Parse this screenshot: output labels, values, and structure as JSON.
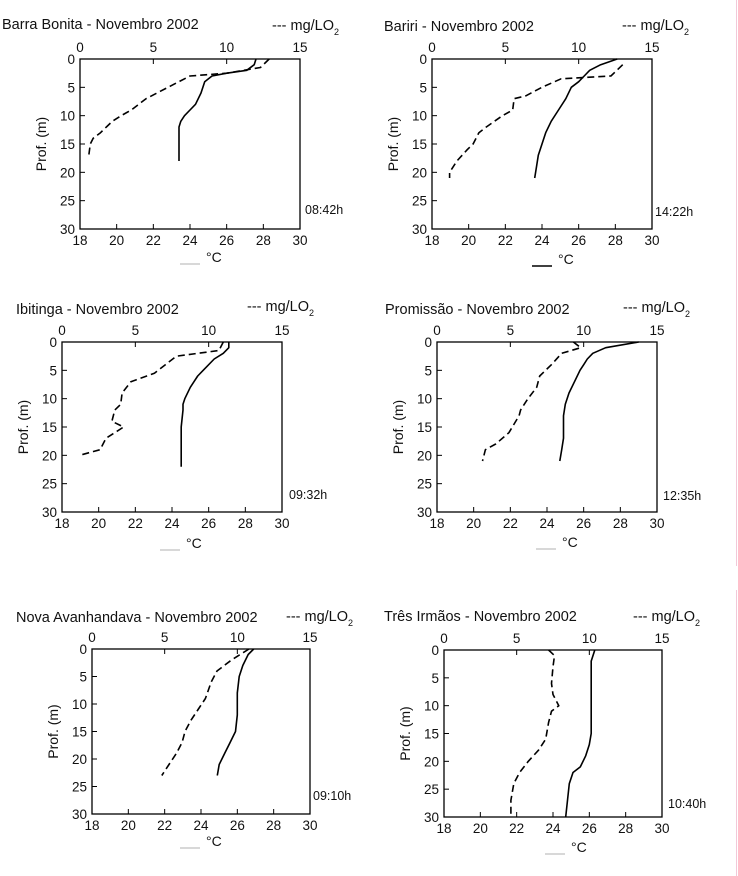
{
  "figure": {
    "type": "depth-profile-grid",
    "colors": {
      "temperature": "#000000",
      "oxygen": "#000000",
      "text": "#111111",
      "edge_accent": "#f2c8d8"
    }
  },
  "chart_data": [
    {
      "type": "line",
      "title": "Barra Bonita - Novembro 2002",
      "legend_o2": "--- mg/LO",
      "legend_o2_sub": "2",
      "legend_temp": "°C",
      "ylabel": "Prof. (m)",
      "time": "08:42h",
      "top_axis": {
        "lim": [
          0,
          15
        ],
        "ticks": [
          "0",
          "5",
          "10",
          "15"
        ]
      },
      "bottom_axis": {
        "lim": [
          18,
          30
        ],
        "ticks": [
          "18",
          "20",
          "22",
          "24",
          "26",
          "28",
          "30"
        ]
      },
      "ylim": [
        0,
        30
      ],
      "yticks": [
        "0",
        "5",
        "10",
        "15",
        "20",
        "25",
        "30"
      ],
      "series": [
        {
          "axis": "bottom",
          "style": "solid",
          "x": [
            27.6,
            27.5,
            27.1,
            26.0,
            25.2,
            24.8,
            24.6,
            24.3,
            24.0,
            23.7,
            23.5,
            23.4,
            23.4,
            23.4
          ],
          "y": [
            0,
            1,
            2,
            2.5,
            3,
            4,
            6,
            8,
            9,
            10,
            11,
            12,
            15,
            18
          ]
        },
        {
          "axis": "top",
          "style": "dashed",
          "x": [
            12.9,
            12.3,
            10.0,
            7.5,
            6.0,
            4.5,
            3.5,
            2.8,
            2.2,
            1.4,
            0.9,
            0.7,
            0.6
          ],
          "y": [
            0,
            1.5,
            2.5,
            3,
            5,
            7,
            9,
            10,
            11,
            13,
            14,
            15,
            17
          ]
        }
      ]
    },
    {
      "type": "line",
      "title": "Bariri - Novembro 2002",
      "legend_o2": "--- mg/LO",
      "legend_o2_sub": "2",
      "legend_temp": "°C",
      "ylabel": "Prof. (m)",
      "time": "14:22h",
      "top_axis": {
        "lim": [
          0,
          15
        ],
        "ticks": [
          "0",
          "5",
          "10",
          "15"
        ]
      },
      "bottom_axis": {
        "lim": [
          18,
          30
        ],
        "ticks": [
          "18",
          "20",
          "22",
          "24",
          "26",
          "28",
          "30"
        ]
      },
      "ylim": [
        0,
        30
      ],
      "yticks": [
        "0",
        "5",
        "10",
        "15",
        "20",
        "25",
        "30"
      ],
      "series": [
        {
          "axis": "bottom",
          "style": "solid",
          "x": [
            28.1,
            27.2,
            26.6,
            26.3,
            26.0,
            25.6,
            25.3,
            24.9,
            24.5,
            24.2,
            24.0,
            23.8,
            23.7,
            23.6
          ],
          "y": [
            0,
            1,
            2,
            3,
            4,
            5,
            7,
            9,
            11,
            13,
            15,
            17,
            19,
            21
          ]
        },
        {
          "axis": "top",
          "style": "dashed",
          "x": [
            13.0,
            12.2,
            8.8,
            7.5,
            6.4,
            5.6,
            5.5,
            4.8,
            3.7,
            3.2,
            2.8,
            2.4,
            1.7,
            1.2,
            1.2
          ],
          "y": [
            1,
            3,
            3.5,
            5,
            6.5,
            7,
            9,
            10,
            12,
            13,
            15,
            16,
            18,
            20,
            21
          ]
        }
      ]
    },
    {
      "type": "line",
      "title": "Ibitinga - Novembro 2002",
      "legend_o2": "--- mg/LO",
      "legend_o2_sub": "2",
      "legend_temp": "°C",
      "ylabel": "Prof. (m)",
      "time": "09:32h",
      "top_axis": {
        "lim": [
          0,
          15
        ],
        "ticks": [
          "0",
          "5",
          "10",
          "15"
        ]
      },
      "bottom_axis": {
        "lim": [
          18,
          30
        ],
        "ticks": [
          "18",
          "20",
          "22",
          "24",
          "26",
          "28",
          "30"
        ]
      },
      "ylim": [
        0,
        30
      ],
      "yticks": [
        "0",
        "5",
        "10",
        "15",
        "20",
        "25",
        "30"
      ],
      "series": [
        {
          "axis": "bottom",
          "style": "solid",
          "x": [
            27.1,
            27.1,
            26.8,
            26.3,
            25.7,
            25.4,
            25.0,
            24.7,
            24.6,
            24.6,
            24.5,
            24.5,
            24.5,
            24.5
          ],
          "y": [
            0,
            1,
            2,
            3,
            5,
            6,
            8,
            10,
            11,
            12,
            15,
            18,
            20,
            22
          ]
        },
        {
          "axis": "top",
          "style": "dashed",
          "x": [
            11.0,
            10.7,
            7.8,
            6.3,
            4.7,
            4.1,
            4.0,
            3.6,
            3.4,
            4.2,
            3.0,
            2.6,
            1.2
          ],
          "y": [
            0,
            1.5,
            2.5,
            5.5,
            7,
            9,
            11,
            12,
            14,
            15,
            17,
            19,
            20
          ]
        }
      ]
    },
    {
      "type": "line",
      "title": "Promissão - Novembro 2002",
      "legend_o2": "--- mg/LO",
      "legend_o2_sub": "2",
      "legend_temp": "°C",
      "ylabel": "Prof. (m)",
      "time": "12:35h",
      "top_axis": {
        "lim": [
          0,
          15
        ],
        "ticks": [
          "0",
          "5",
          "10",
          "15"
        ]
      },
      "bottom_axis": {
        "lim": [
          18,
          30
        ],
        "ticks": [
          "18",
          "20",
          "22",
          "24",
          "26",
          "28",
          "30"
        ]
      },
      "ylim": [
        0,
        30
      ],
      "yticks": [
        "0",
        "5",
        "10",
        "15",
        "20",
        "25",
        "30"
      ],
      "series": [
        {
          "axis": "bottom",
          "style": "solid",
          "x": [
            29.0,
            27.2,
            26.5,
            26.2,
            26.0,
            25.8,
            25.5,
            25.2,
            25.0,
            24.9,
            24.9,
            24.9,
            24.8,
            24.7
          ],
          "y": [
            0,
            1,
            2,
            3,
            4,
            5,
            7,
            9,
            11,
            13,
            15,
            17,
            19,
            21
          ]
        },
        {
          "axis": "top",
          "style": "dashed",
          "x": [
            9.3,
            9.8,
            8.5,
            7.8,
            7.0,
            6.8,
            6.2,
            5.7,
            5.6,
            4.9,
            4.0,
            3.3,
            3.1
          ],
          "y": [
            0,
            1,
            2,
            4,
            6,
            8,
            10,
            12,
            13,
            16,
            18,
            19,
            21
          ]
        }
      ]
    },
    {
      "type": "line",
      "title": "Nova Avanhandava - Novembro 2002",
      "legend_o2": "--- mg/LO",
      "legend_o2_sub": "2",
      "legend_temp": "°C",
      "ylabel": "Prof. (m)",
      "time": "09:10h",
      "top_axis": {
        "lim": [
          0,
          15
        ],
        "ticks": [
          "0",
          "5",
          "10",
          "15"
        ]
      },
      "bottom_axis": {
        "lim": [
          18,
          30
        ],
        "ticks": [
          "18",
          "20",
          "22",
          "24",
          "26",
          "28",
          "30"
        ]
      },
      "ylim": [
        0,
        30
      ],
      "yticks": [
        "0",
        "5",
        "10",
        "15",
        "20",
        "25",
        "30"
      ],
      "series": [
        {
          "axis": "bottom",
          "style": "solid",
          "x": [
            26.9,
            26.6,
            26.3,
            26.1,
            26.0,
            26.0,
            26.0,
            25.9,
            25.6,
            25.3,
            25.0,
            24.9
          ],
          "y": [
            0,
            1,
            3,
            5,
            8,
            10,
            12,
            15,
            17,
            19,
            21,
            23
          ]
        },
        {
          "axis": "top",
          "style": "dashed",
          "x": [
            10.8,
            9.6,
            8.6,
            8.2,
            7.8,
            7.3,
            6.8,
            6.4,
            6.2,
            5.8,
            5.3,
            4.8
          ],
          "y": [
            0,
            2,
            4,
            6,
            9,
            11,
            13,
            15,
            17,
            19,
            21,
            23
          ]
        }
      ]
    },
    {
      "type": "line",
      "title": "Três Irmãos - Novembro 2002",
      "legend_o2": "--- mg/LO",
      "legend_o2_sub": "2",
      "legend_temp": "°C",
      "ylabel": "Prof. (m)",
      "time": "10:40h",
      "top_axis": {
        "lim": [
          0,
          15
        ],
        "ticks": [
          "0",
          "5",
          "10",
          "15"
        ]
      },
      "bottom_axis": {
        "lim": [
          18,
          30
        ],
        "ticks": [
          "18",
          "20",
          "22",
          "24",
          "26",
          "28",
          "30"
        ]
      },
      "ylim": [
        0,
        30
      ],
      "yticks": [
        "0",
        "5",
        "10",
        "15",
        "20",
        "25",
        "30"
      ],
      "series": [
        {
          "axis": "bottom",
          "style": "solid",
          "x": [
            26.3,
            26.1,
            26.1,
            26.1,
            26.1,
            26.0,
            25.8,
            25.5,
            25.1,
            24.9,
            24.8,
            24.7
          ],
          "y": [
            0,
            2,
            5,
            10,
            15,
            17,
            19,
            21,
            22,
            24,
            27,
            30
          ]
        },
        {
          "axis": "top",
          "style": "dashed",
          "x": [
            7.2,
            7.6,
            7.5,
            7.4,
            7.5,
            7.9,
            7.4,
            7.2,
            7.0,
            6.5,
            5.8,
            5.2,
            4.8,
            4.6,
            4.6
          ],
          "y": [
            0,
            1,
            3,
            6,
            8,
            10,
            11,
            13,
            16,
            18,
            20,
            22,
            24,
            27,
            30
          ]
        }
      ]
    }
  ]
}
